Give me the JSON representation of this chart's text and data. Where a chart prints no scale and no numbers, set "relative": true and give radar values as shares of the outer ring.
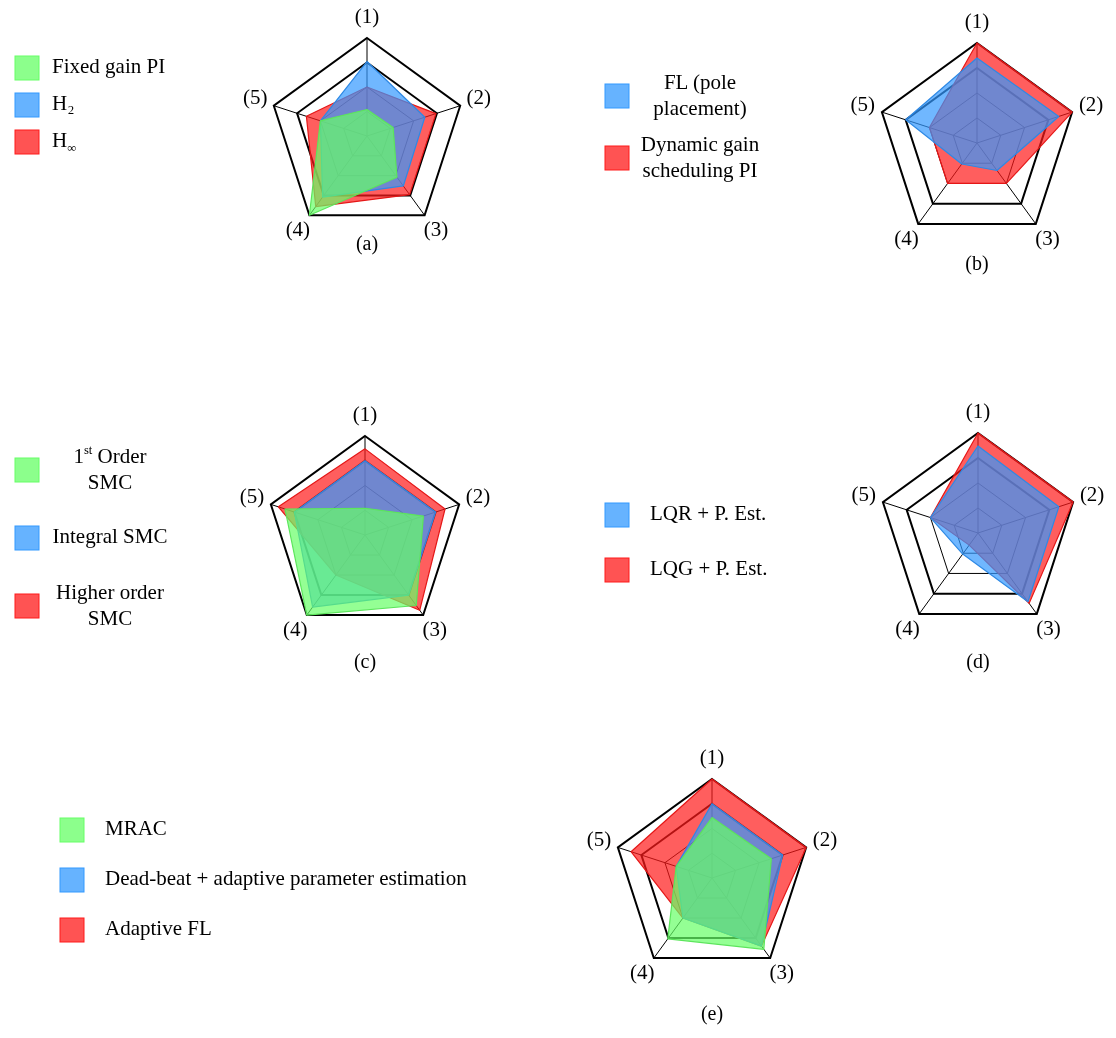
{
  "chart_data": [
    {
      "type": "radar",
      "relative": true,
      "categories": [
        "(1)",
        "(2)",
        "(3)",
        "(4)",
        "(5)"
      ],
      "legend": "left",
      "annotations": [
        "(a)"
      ],
      "series": [
        {
          "name": "Fixed gain PI",
          "color": "#66ff66",
          "values": [
            0.27,
            0.28,
            0.52,
            1.0,
            0.5
          ]
        },
        {
          "name": "H₂",
          "color": "#3399ff",
          "values": [
            0.76,
            0.62,
            0.63,
            0.77,
            0.5
          ]
        },
        {
          "name": "H$_{∞}$",
          "color": "#ff1a1a",
          "values": [
            0.5,
            0.74,
            0.74,
            0.89,
            0.65
          ]
        }
      ]
    },
    {
      "type": "radar",
      "relative": true,
      "categories": [
        "(1)",
        "(2)",
        "(3)",
        "(4)",
        "(5)"
      ],
      "legend": "left",
      "annotations": [
        "(b)"
      ],
      "series": [
        {
          "name": "FL (pole placement)",
          "color": "#3399ff",
          "values": [
            0.85,
            0.86,
            0.34,
            0.26,
            0.75
          ]
        },
        {
          "name": "Dynamic gain scheduling PI",
          "color": "#ff1a1a",
          "values": [
            1.0,
            1.0,
            0.5,
            0.5,
            0.5
          ]
        }
      ]
    },
    {
      "type": "radar",
      "relative": true,
      "categories": [
        "(1)",
        "(2)",
        "(3)",
        "(4)",
        "(5)"
      ],
      "legend": "left",
      "annotations": [
        "(c)"
      ],
      "series": [
        {
          "name": "1$^{st}$ Order SMC",
          "color": "#66ff66",
          "values": [
            0.27,
            0.62,
            0.88,
            1.0,
            0.85
          ]
        },
        {
          "name": "Integral SMC",
          "color": "#3399ff",
          "values": [
            0.75,
            0.75,
            0.75,
            0.9,
            0.75
          ]
        },
        {
          "name": "Higher order SMC",
          "color": "#ff1a1a",
          "values": [
            0.87,
            0.85,
            0.94,
            0.5,
            0.92
          ]
        }
      ]
    },
    {
      "type": "radar",
      "relative": true,
      "categories": [
        "(1)",
        "(2)",
        "(3)",
        "(4)",
        "(5)"
      ],
      "legend": "left",
      "annotations": [
        "(d)"
      ],
      "series": [
        {
          "name": "LQR + P. Est.",
          "color": "#3399ff",
          "values": [
            0.87,
            0.85,
            0.85,
            0.26,
            0.5
          ]
        },
        {
          "name": "LQG + P. Est.",
          "color": "#ff1a1a",
          "values": [
            1.0,
            1.0,
            0.87,
            0.15,
            0.5
          ]
        }
      ]
    },
    {
      "type": "radar",
      "relative": true,
      "categories": [
        "(1)",
        "(2)",
        "(3)",
        "(4)",
        "(5)"
      ],
      "legend": "left",
      "annotations": [
        "(e)"
      ],
      "series": [
        {
          "name": "MRAC",
          "color": "#66ff66",
          "values": [
            0.61,
            0.63,
            0.89,
            0.76,
            0.38
          ]
        },
        {
          "name": "Dead-beat + adaptive parameter estimation",
          "color": "#3399ff",
          "values": [
            0.75,
            0.75,
            0.85,
            0.5,
            0.38
          ]
        },
        {
          "name": "Adaptive FL",
          "color": "#ff1a1a",
          "values": [
            1.0,
            1.0,
            0.85,
            0.5,
            0.86
          ]
        }
      ]
    }
  ]
}
